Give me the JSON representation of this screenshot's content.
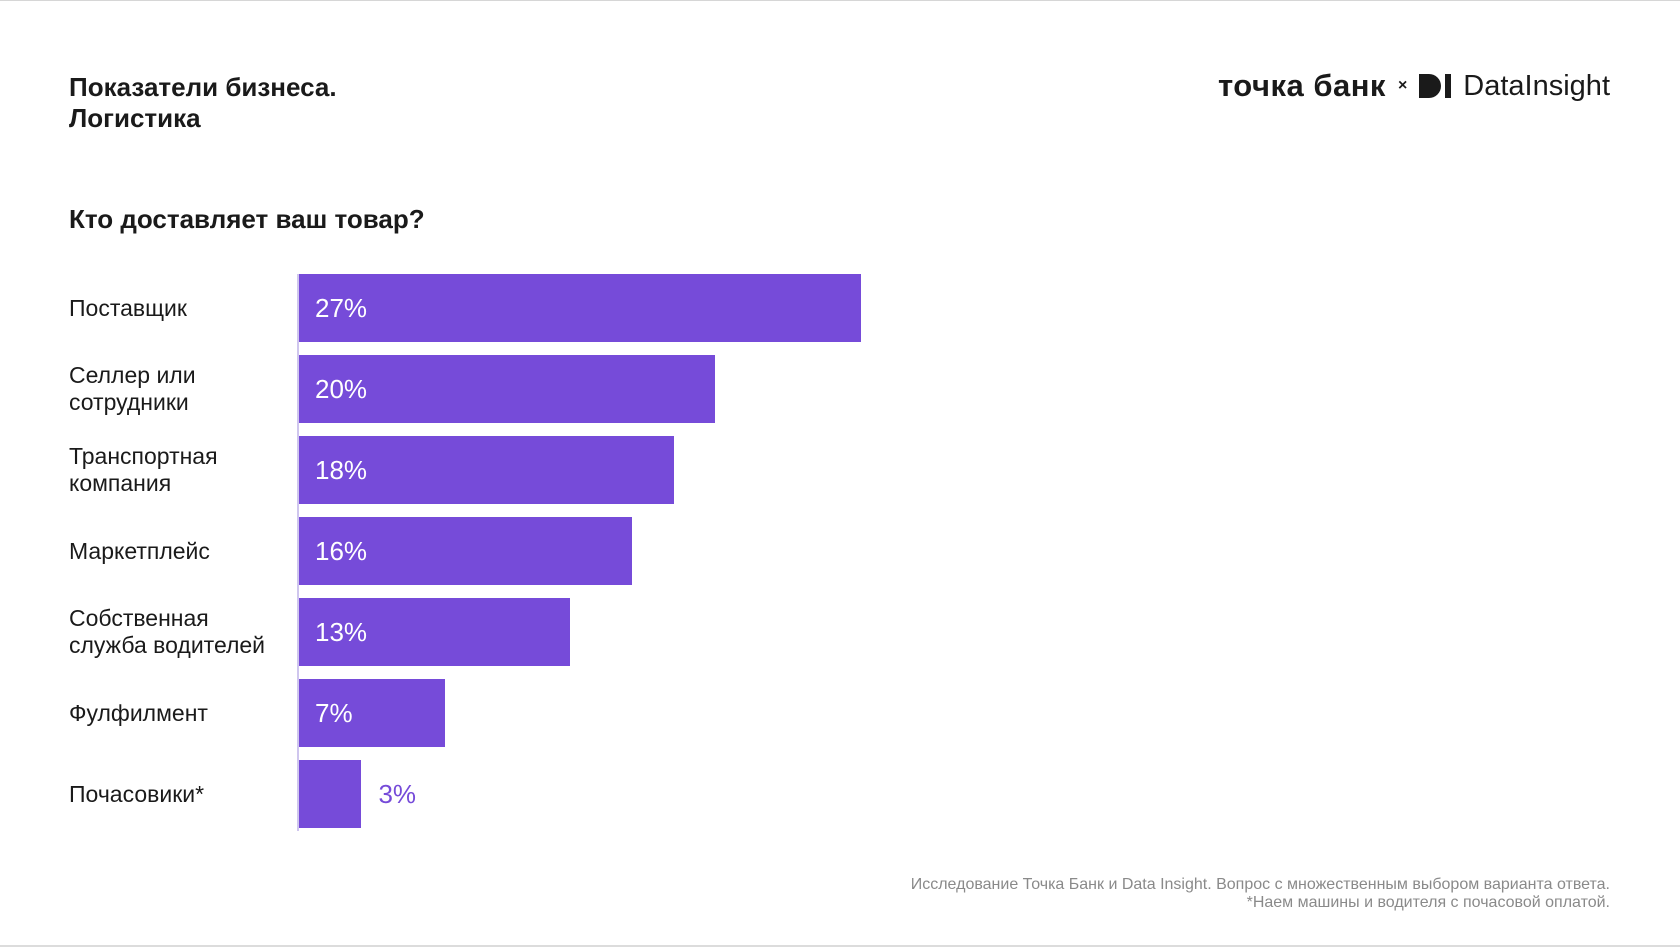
{
  "header": {
    "title_line1": "Показатели бизнеса.",
    "title_line2": "Логистика",
    "logo_tochka": "точка банк",
    "logo_separator": "×",
    "logo_datainsight": "DataInsight"
  },
  "colors": {
    "bar": "#764bd9",
    "value_outside": "#764bd9",
    "value_inside": "#ffffff"
  },
  "chart_data": {
    "type": "bar",
    "orientation": "horizontal",
    "title": "Кто доставляет ваш товар?",
    "categories": [
      [
        "Поставщик"
      ],
      [
        "Селлер или",
        "сотрудники"
      ],
      [
        "Транспортная",
        "компания"
      ],
      [
        "Маркетплейс"
      ],
      [
        "Собственная",
        "служба водителей"
      ],
      [
        "Фулфилмент"
      ],
      [
        "Почасовики*"
      ]
    ],
    "values": [
      27,
      20,
      18,
      16,
      13,
      7,
      3
    ],
    "labels": [
      "27%",
      "20%",
      "18%",
      "16%",
      "13%",
      "7%",
      "3%"
    ],
    "unit": "%",
    "xlim": [
      0,
      27
    ]
  },
  "footer": {
    "line1": "Исследование Точка Банк и Data Insight. Вопрос с множественным выбором варианта ответа.",
    "line2": "*Наем машины и водителя с почасовой оплатой."
  }
}
